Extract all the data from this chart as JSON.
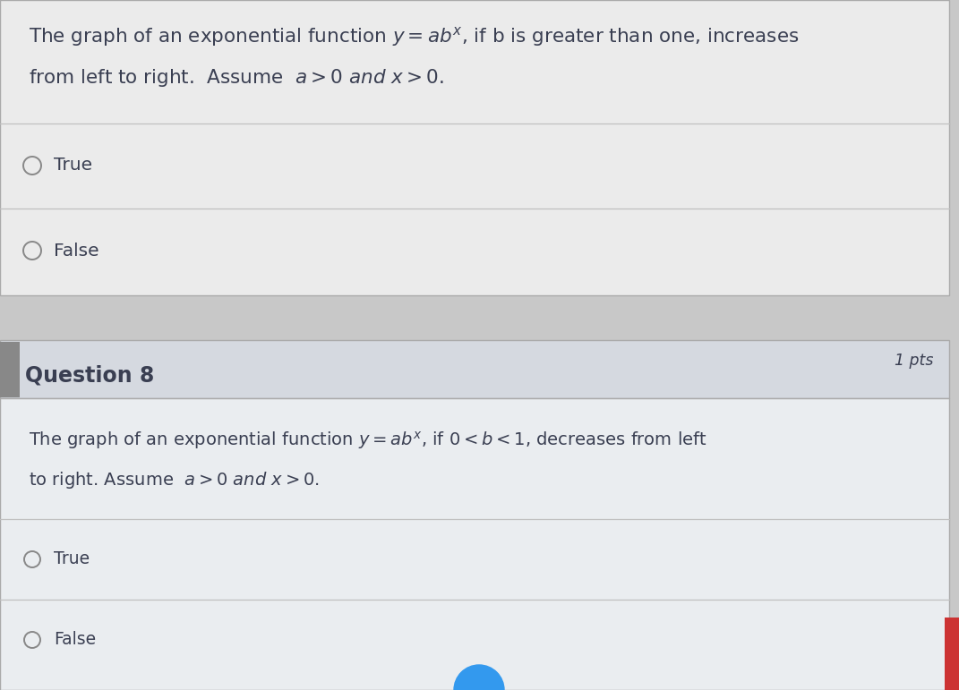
{
  "bg_color": "#c8c8c8",
  "q7_box_bg": "#ebebeb",
  "q7_text_line1": "The graph of an exponential function $y = ab^x$, if b is greater than one, increases",
  "q7_text_line2": "from left to right.  Assume  $a > 0$ $and$ $x > 0$.",
  "q7_option1": "True",
  "q7_option2": "False",
  "q8_header_bg": "#d5d9e0",
  "q8_header_text": "Question 8",
  "q8_pts_text": "1 pts",
  "q8_body_bg": "#eaedf0",
  "q8_text_line1": "The graph of an exponential function $y = ab^x$, if $0 < b < 1$, decreases from left",
  "q8_text_line2": "to right. Assume  $a > 0$ $and$ $x > 0$.",
  "q8_option1": "True",
  "q8_option2": "False",
  "text_color": "#3a3f52",
  "divider_color": "#c0c0c0",
  "circle_color": "#888888",
  "pts_color": "#3a3f52",
  "left_tab_color": "#888888",
  "blue_circle_color": "#3399ee",
  "red_accent_color": "#cc3333"
}
